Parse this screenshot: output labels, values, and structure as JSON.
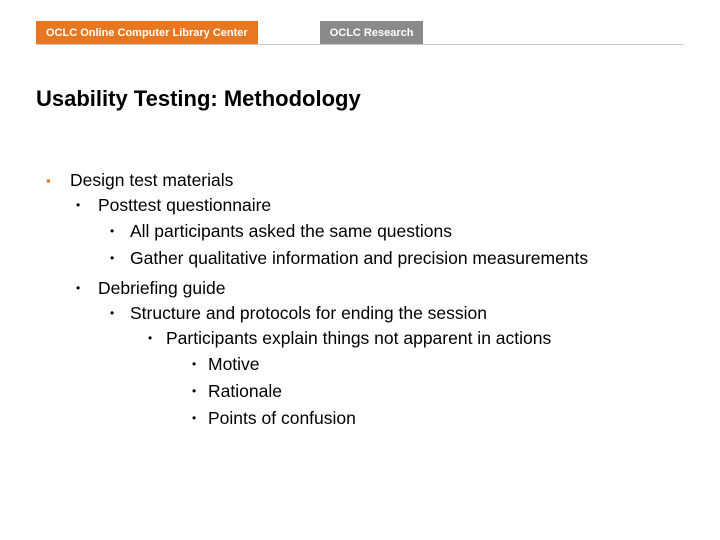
{
  "header": {
    "badge1": "OCLC Online Computer Library Center",
    "badge2": "OCLC Research"
  },
  "title": "Usability Testing: Methodology",
  "colors": {
    "accent_orange": "#e87722",
    "badge_gray": "#8a8a8a",
    "text": "#000000",
    "divider": "#c9c9c9",
    "background": "#ffffff"
  },
  "typography": {
    "title_fontsize": 22,
    "title_weight": "bold",
    "body_fontsize": 17.5,
    "badge_fontsize": 11,
    "font_family": "Verdana"
  },
  "outline": {
    "lvl1": "Design test materials",
    "lvl2_a": "Posttest questionnaire",
    "lvl3_a1": "All participants asked the same questions",
    "lvl3_a2": "Gather qualitative information and precision measurements",
    "lvl2_b": "Debriefing guide",
    "lvl3_b1": "Structure and protocols for ending the session",
    "lvl4_b1a": "Participants explain things not apparent in actions",
    "lvl5_b1a1": "Motive",
    "lvl5_b1a2": "Rationale",
    "lvl5_b1a3": "Points of confusion"
  },
  "bullets": {
    "square": "▪",
    "dot": "•"
  }
}
